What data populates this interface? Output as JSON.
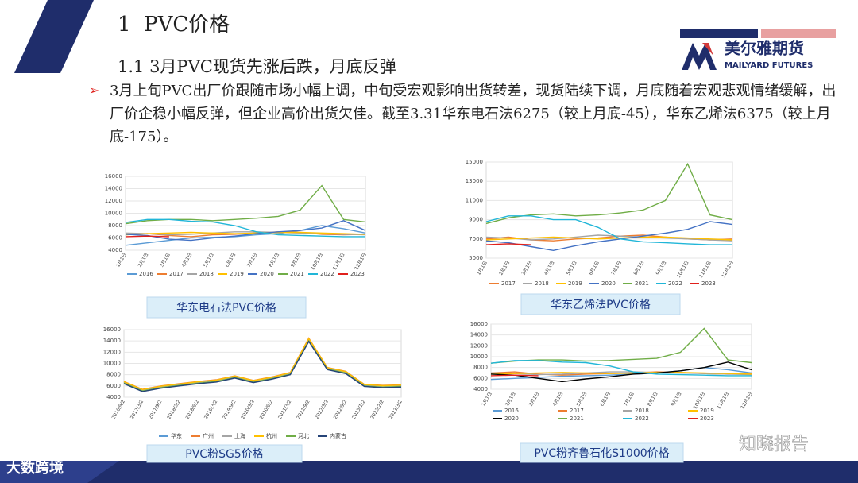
{
  "header": {
    "section_number": "1",
    "section_title": "PVC价格",
    "subtitle": "1.1 3月PVC现货先涨后跌，月底反弹"
  },
  "logo": {
    "name": "美尔雅期货",
    "english": "MAILYARD FUTURES"
  },
  "bullet": "3月上旬PVC出厂价跟随市场小幅上调，中旬受宏观影响出货转差，现货陆续下调，月底随着宏观悲观情绪缓解，出厂价企稳小幅反弹，但企业高价出货欠佳。截至3.31华东电石法6275（较上月底-45），华东乙烯法6375（较上月底-175）。",
  "watermarks": [
    "大数跨境",
    "知晓报告"
  ],
  "chart_data": [
    {
      "type": "line",
      "title": "华东电石法PVC价格",
      "categories": [
        "1月1日",
        "2月1日",
        "3月1日",
        "4月1日",
        "5月1日",
        "6月1日",
        "7月1日",
        "8月1日",
        "9月1日",
        "10月1日",
        "11月1日",
        "12月1日"
      ],
      "ylim": [
        4000,
        16000
      ],
      "yticks": [
        4000,
        6000,
        8000,
        10000,
        12000,
        14000,
        16000
      ],
      "series": [
        {
          "name": "2016",
          "color": "#5b9bd5",
          "values": [
            4800,
            5200,
            5600,
            6000,
            6100,
            6200,
            6500,
            6700,
            7200,
            8000,
            7500,
            6800
          ]
        },
        {
          "name": "2017",
          "color": "#ed7d31",
          "values": [
            6500,
            6700,
            6400,
            6200,
            6500,
            6600,
            6800,
            7000,
            6900,
            6600,
            6500,
            6600
          ]
        },
        {
          "name": "2018",
          "color": "#a5a5a5",
          "values": [
            6800,
            6700,
            6500,
            6600,
            6800,
            7000,
            7000,
            6900,
            6800,
            6700,
            6600,
            6500
          ]
        },
        {
          "name": "2019",
          "color": "#ffc000",
          "values": [
            6500,
            6700,
            6800,
            6900,
            6800,
            6700,
            6800,
            6900,
            6900,
            6800,
            6700,
            6600
          ]
        },
        {
          "name": "2020",
          "color": "#4472c4",
          "values": [
            6600,
            6400,
            5800,
            5600,
            6000,
            6300,
            6700,
            7000,
            7200,
            7600,
            8800,
            7200
          ]
        },
        {
          "name": "2021",
          "color": "#70ad47",
          "values": [
            8300,
            8800,
            9000,
            9000,
            8800,
            9000,
            9200,
            9500,
            10500,
            14500,
            9000,
            8600
          ]
        },
        {
          "name": "2022",
          "color": "#21b6d8",
          "values": [
            8500,
            9000,
            9000,
            8700,
            8600,
            8000,
            7000,
            6500,
            6400,
            6300,
            6200,
            6200
          ]
        },
        {
          "name": "2023",
          "color": "#e0201c",
          "values": [
            6200,
            6300,
            6200,
            null,
            null,
            null,
            null,
            null,
            null,
            null,
            null,
            null
          ]
        }
      ]
    },
    {
      "type": "line",
      "title": "华东乙烯法PVC价格",
      "categories": [
        "1月1日",
        "2月1日",
        "3月1日",
        "4月1日",
        "5月1日",
        "6月1日",
        "7月1日",
        "8月1日",
        "9月1日",
        "10月1日",
        "11月1日",
        "12月1日"
      ],
      "ylim": [
        5000,
        15000
      ],
      "yticks": [
        5000,
        7000,
        9000,
        11000,
        13000,
        15000
      ],
      "series": [
        {
          "name": "2017",
          "color": "#ed7d31",
          "values": [
            7000,
            7200,
            6900,
            6800,
            7000,
            7100,
            7300,
            7400,
            7200,
            7000,
            6900,
            7000
          ]
        },
        {
          "name": "2018",
          "color": "#a5a5a5",
          "values": [
            7200,
            7100,
            6900,
            7000,
            7200,
            7400,
            7300,
            7200,
            7100,
            7000,
            6900,
            6800
          ]
        },
        {
          "name": "2019",
          "color": "#ffc000",
          "values": [
            6900,
            7000,
            7100,
            7200,
            7100,
            7000,
            7100,
            7200,
            7200,
            7100,
            7000,
            6900
          ]
        },
        {
          "name": "2020",
          "color": "#4472c4",
          "values": [
            6800,
            6600,
            6200,
            5800,
            6300,
            6700,
            7000,
            7300,
            7600,
            8000,
            8800,
            8500
          ]
        },
        {
          "name": "2021",
          "color": "#70ad47",
          "values": [
            8600,
            9200,
            9500,
            9600,
            9400,
            9500,
            9700,
            10000,
            11000,
            14800,
            9500,
            9000
          ]
        },
        {
          "name": "2022",
          "color": "#21b6d8",
          "values": [
            8800,
            9400,
            9400,
            9000,
            9000,
            8200,
            7000,
            6700,
            6600,
            6500,
            6400,
            6400
          ]
        },
        {
          "name": "2023",
          "color": "#e0201c",
          "values": [
            6400,
            6500,
            6400,
            null,
            null,
            null,
            null,
            null,
            null,
            null,
            null,
            null
          ]
        }
      ]
    },
    {
      "type": "line",
      "title": "PVC粉SG5价格",
      "categories": [
        "2016/9/2",
        "2017/3/2",
        "2017/9/2",
        "2018/3/2",
        "2018/9/2",
        "2019/3/2",
        "2019/9/2",
        "2020/3/2",
        "2020/9/2",
        "2021/3/2",
        "2021/9/2",
        "2022/3/2",
        "2022/9/2",
        "2023/1/2",
        "2023/2/2",
        "2023/3/2"
      ],
      "ylim": [
        4000,
        16000
      ],
      "yticks": [
        4000,
        6000,
        8000,
        10000,
        12000,
        14000,
        16000
      ],
      "series": [
        {
          "name": "华东",
          "color": "#5b9bd5",
          "values": [
            6700,
            5300,
            5900,
            6300,
            6700,
            7000,
            7700,
            6900,
            7500,
            8300,
            14300,
            9200,
            8500,
            6200,
            6000,
            6100
          ]
        },
        {
          "name": "广州",
          "color": "#ed7d31",
          "values": [
            6800,
            5400,
            6000,
            6400,
            6800,
            7100,
            7800,
            7000,
            7600,
            8400,
            14500,
            9300,
            8600,
            6300,
            6100,
            6200
          ]
        },
        {
          "name": "上海",
          "color": "#a5a5a5",
          "values": [
            6700,
            5300,
            5900,
            6300,
            6700,
            7000,
            7700,
            6900,
            7500,
            8300,
            14200,
            9200,
            8500,
            6200,
            6000,
            6100
          ]
        },
        {
          "name": "杭州",
          "color": "#ffc000",
          "values": [
            6750,
            5350,
            5950,
            6350,
            6750,
            7050,
            7750,
            6950,
            7550,
            8350,
            14400,
            9250,
            8550,
            6250,
            6050,
            6150
          ]
        },
        {
          "name": "河北",
          "color": "#70ad47",
          "values": [
            6500,
            5100,
            5700,
            6100,
            6500,
            6800,
            7500,
            6700,
            7300,
            8100,
            14000,
            9000,
            8300,
            6000,
            5800,
            5900
          ]
        },
        {
          "name": "内蒙古",
          "color": "#264478",
          "values": [
            6400,
            5000,
            5600,
            6000,
            6400,
            6700,
            7400,
            6600,
            7200,
            8000,
            13900,
            8900,
            8200,
            5900,
            5700,
            5800
          ]
        }
      ]
    },
    {
      "type": "line",
      "title": "PVC粉齐鲁石化S1000价格",
      "categories": [
        "1月1日",
        "2月1日",
        "3月1日",
        "4月1日",
        "5月1日",
        "6月1日",
        "7月1日",
        "8月1日",
        "9月1日",
        "10月1日",
        "11月1日",
        "12月1日"
      ],
      "ylim": [
        4000,
        16000
      ],
      "yticks": [
        4000,
        6000,
        8000,
        10000,
        12000,
        14000,
        16000
      ],
      "series": [
        {
          "name": "2016",
          "color": "#5b9bd5",
          "values": [
            5800,
            6000,
            6200,
            6400,
            6500,
            6600,
            6800,
            7000,
            7400,
            8000,
            7600,
            7000
          ]
        },
        {
          "name": "2017",
          "color": "#ed7d31",
          "values": [
            7000,
            7200,
            6800,
            6600,
            6800,
            6900,
            7000,
            7200,
            7100,
            6900,
            6800,
            6900
          ]
        },
        {
          "name": "2018",
          "color": "#a5a5a5",
          "values": [
            7000,
            6900,
            6700,
            6800,
            7000,
            7200,
            7200,
            7100,
            7000,
            6900,
            6800,
            6700
          ]
        },
        {
          "name": "2019",
          "color": "#ffc000",
          "values": [
            6800,
            6900,
            7000,
            7100,
            7000,
            6900,
            7000,
            7100,
            7100,
            7000,
            6900,
            6800
          ]
        },
        {
          "name": "2020",
          "color": "#000000",
          "values": [
            6800,
            6600,
            6000,
            5400,
            5900,
            6300,
            6800,
            7000,
            7400,
            8000,
            9000,
            7600
          ]
        },
        {
          "name": "2021",
          "color": "#70ad47",
          "values": [
            8800,
            9200,
            9400,
            9400,
            9200,
            9300,
            9500,
            9700,
            10800,
            15200,
            9400,
            8900
          ]
        },
        {
          "name": "2022",
          "color": "#21b6d8",
          "values": [
            8800,
            9300,
            9300,
            9000,
            8900,
            8300,
            7200,
            6800,
            6700,
            6600,
            6500,
            6500
          ]
        },
        {
          "name": "2023",
          "color": "#e0201c",
          "values": [
            6500,
            6600,
            6500,
            null,
            null,
            null,
            null,
            null,
            null,
            null,
            null,
            null
          ]
        }
      ]
    }
  ]
}
